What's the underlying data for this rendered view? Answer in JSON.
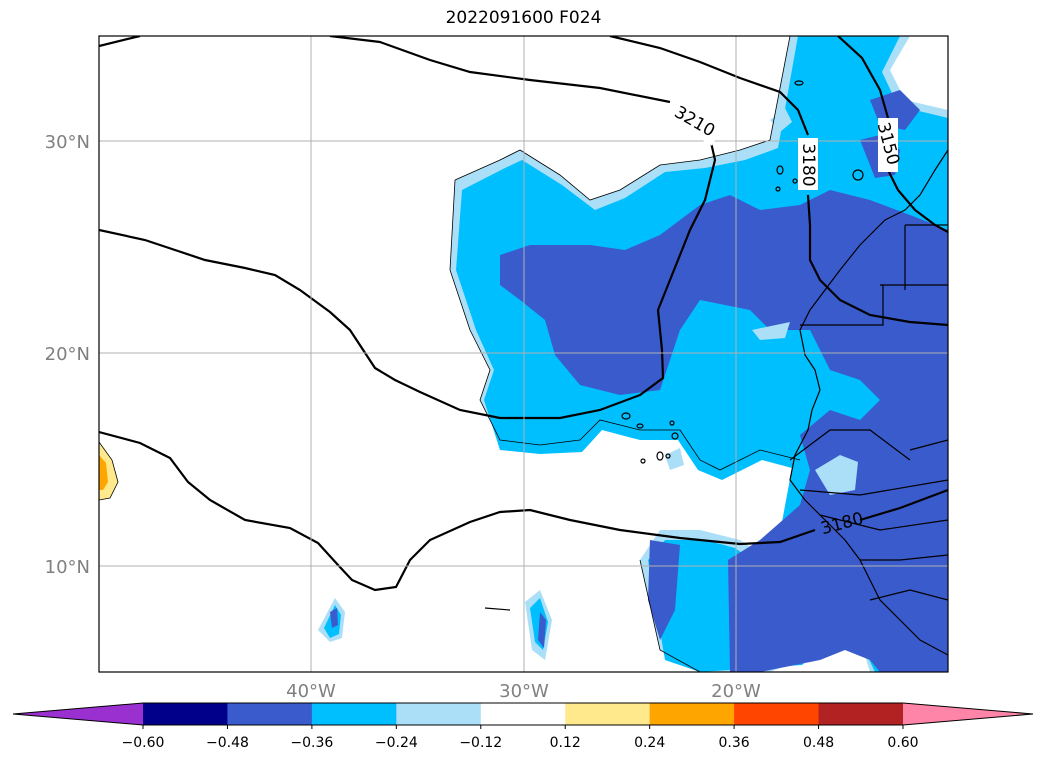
{
  "title": "2022091600 F024",
  "map": {
    "lat_ticks": [
      "30°N",
      "20°N",
      "10°N"
    ],
    "lon_ticks": [
      "40°W",
      "30°W",
      "20°W"
    ],
    "contour_labels": [
      "3210",
      "3180",
      "3150",
      "3180"
    ],
    "contour_levels": [
      3150,
      3180,
      3210
    ],
    "colors": {
      "shade_light": "#aadff7",
      "shade_mid": "#00bfff",
      "shade_dark": "#3a5bcc",
      "positive_yellow": "#ffe98c",
      "positive_orange": "#ffa500",
      "grid": "#b0b0b0",
      "contour": "#000000"
    }
  },
  "colorbar": {
    "tick_labels": [
      "−0.60",
      "−0.48",
      "−0.36",
      "−0.24",
      "−0.12",
      "0.12",
      "0.24",
      "0.36",
      "0.48",
      "0.60"
    ],
    "bins": [
      {
        "color": "#9b30d0"
      },
      {
        "color": "#00008b"
      },
      {
        "color": "#3a5bcc"
      },
      {
        "color": "#00bfff"
      },
      {
        "color": "#aadff7"
      },
      {
        "color": "#ffffff"
      },
      {
        "color": "#ffe98c"
      },
      {
        "color": "#ffa500"
      },
      {
        "color": "#ff4500"
      },
      {
        "color": "#b22222"
      },
      {
        "color": "#ff85a8"
      }
    ]
  }
}
